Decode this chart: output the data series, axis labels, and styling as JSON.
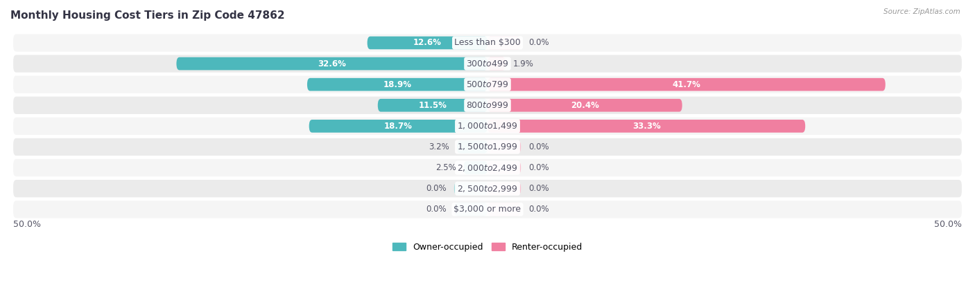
{
  "title": "Monthly Housing Cost Tiers in Zip Code 47862",
  "source": "Source: ZipAtlas.com",
  "categories": [
    "Less than $300",
    "$300 to $499",
    "$500 to $799",
    "$800 to $999",
    "$1,000 to $1,499",
    "$1,500 to $1,999",
    "$2,000 to $2,499",
    "$2,500 to $2,999",
    "$3,000 or more"
  ],
  "owner_values": [
    12.6,
    32.6,
    18.9,
    11.5,
    18.7,
    3.2,
    2.5,
    0.0,
    0.0
  ],
  "renter_values": [
    0.0,
    1.9,
    41.7,
    20.4,
    33.3,
    0.0,
    0.0,
    0.0,
    0.0
  ],
  "owner_color": "#4db8bc",
  "renter_color": "#f07fa0",
  "owner_color_light": "#a8dede",
  "renter_color_light": "#f9c0d0",
  "row_bg_color_odd": "#f5f5f5",
  "row_bg_color_even": "#ebebeb",
  "label_color_dark": "#555566",
  "label_color_white": "#ffffff",
  "max_value": 50.0,
  "stub_value": 3.5,
  "title_fontsize": 11,
  "label_fontsize": 8.5,
  "tick_fontsize": 9,
  "category_fontsize": 9
}
